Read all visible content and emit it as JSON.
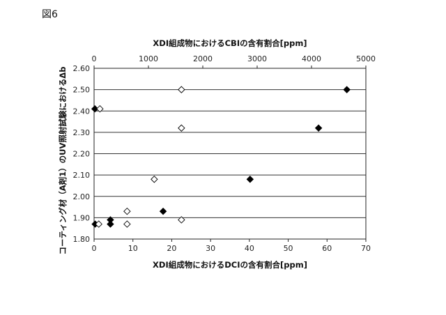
{
  "figure_label": "図6",
  "chart_data": {
    "type": "scatter",
    "top_axis": {
      "label": "XDI組成物におけるCBIの含有割合[ppm]",
      "range": [
        0,
        5000
      ],
      "ticks": [
        "0",
        "1000",
        "2000",
        "3000",
        "4000",
        "5000"
      ]
    },
    "bottom_axis": {
      "label": "XDI組成物におけるDCIの含有割合[ppm]",
      "range": [
        0,
        70
      ],
      "ticks": [
        "0",
        "10",
        "20",
        "30",
        "40",
        "50",
        "60",
        "70"
      ]
    },
    "y_axis": {
      "label": "コーティング材（A剤1）のUV照射試験におけるΔb",
      "range": [
        1.8,
        2.6
      ],
      "ticks": [
        "1.80",
        "1.90",
        "2.00",
        "2.10",
        "2.20",
        "2.30",
        "2.40",
        "2.50",
        "2.60"
      ]
    },
    "grid": "horizontal",
    "series": [
      {
        "marker": "filled-diamond",
        "axis": "top",
        "color": "#000000",
        "points": [
          {
            "x": 15,
            "y": 2.41
          },
          {
            "x": 20,
            "y": 1.87
          },
          {
            "x": 300,
            "y": 1.89
          },
          {
            "x": 300,
            "y": 1.87
          },
          {
            "x": 1270,
            "y": 1.93
          },
          {
            "x": 2870,
            "y": 2.08
          },
          {
            "x": 4130,
            "y": 2.32
          },
          {
            "x": 4650,
            "y": 2.5
          }
        ]
      },
      {
        "marker": "open-diamond",
        "axis": "bottom",
        "color": "#000000",
        "points": [
          {
            "x": 1.5,
            "y": 2.41
          },
          {
            "x": 1.2,
            "y": 1.87
          },
          {
            "x": 8.5,
            "y": 1.93
          },
          {
            "x": 8.5,
            "y": 1.87
          },
          {
            "x": 15.5,
            "y": 2.08
          },
          {
            "x": 22.5,
            "y": 2.5
          },
          {
            "x": 22.5,
            "y": 2.32
          },
          {
            "x": 22.5,
            "y": 1.89
          }
        ]
      }
    ]
  }
}
